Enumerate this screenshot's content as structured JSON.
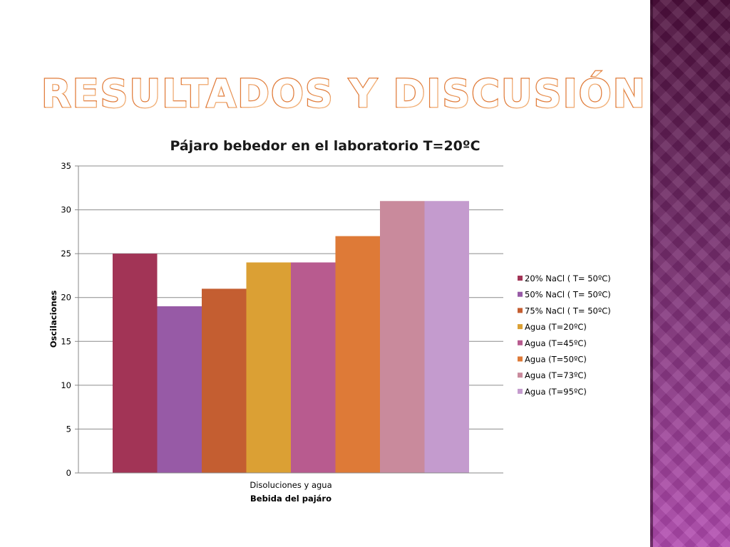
{
  "slide": {
    "title": "RESULTADOS Y DISCUSIÓN"
  },
  "chart_data": {
    "type": "bar",
    "title": "Pájaro bebedor en el laboratorio T=20ºC",
    "xlabel": "Bebida del pajáro",
    "ylabel": "Oscilaciones",
    "categories": [
      "Disoluciones y agua"
    ],
    "ylim": [
      0,
      35
    ],
    "yticks": [
      0,
      5,
      10,
      15,
      20,
      25,
      30,
      35
    ],
    "grid": true,
    "legend_position": "right",
    "series": [
      {
        "name": "20% NaCl ( T= 50ºC)",
        "values": [
          25
        ],
        "color": "#a23456"
      },
      {
        "name": "50% NaCl ( T= 50ºC)",
        "values": [
          19
        ],
        "color": "#975aa6"
      },
      {
        "name": "75% NaCl ( T= 50ºC)",
        "values": [
          21
        ],
        "color": "#c45e31"
      },
      {
        "name": "Agua (T=20ºC)",
        "values": [
          24
        ],
        "color": "#dba034"
      },
      {
        "name": "Agua (T=45ºC)",
        "values": [
          24
        ],
        "color": "#b85b8f"
      },
      {
        "name": "Agua (T=50ºC)",
        "values": [
          27
        ],
        "color": "#de7a37"
      },
      {
        "name": "Agua (T=73ºC)",
        "values": [
          31
        ],
        "color": "#c98a9c"
      },
      {
        "name": "Agua (T=95ºC)",
        "values": [
          31
        ],
        "color": "#c49bce"
      }
    ]
  }
}
